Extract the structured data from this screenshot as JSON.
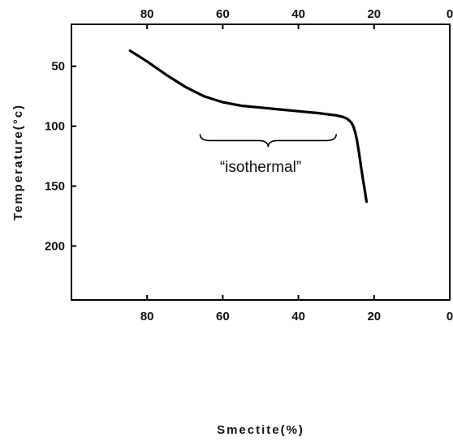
{
  "chart_data": {
    "type": "line",
    "title": "",
    "xlabel": "Smectite(%)",
    "ylabel": "Temperature(°c)",
    "xlim": [
      100,
      0
    ],
    "ylim": [
      15,
      245
    ],
    "x_ticks": [
      80,
      60,
      40,
      20,
      0
    ],
    "x_tick_labels": [
      "80",
      "60",
      "40",
      "20",
      "0"
    ],
    "y_ticks": [
      50,
      100,
      150,
      200
    ],
    "y_tick_labels": [
      "50",
      "100",
      "150",
      "200"
    ],
    "y_axis_inverted": true,
    "x_axis_mirrored_on_top": true,
    "grid": false,
    "series": [
      {
        "x": [
          84.5,
          80,
          75,
          70,
          65,
          60,
          55,
          50,
          45,
          40,
          35,
          30,
          28,
          27,
          26,
          25.5,
          25,
          24.5,
          24,
          23.5,
          23,
          22.5,
          22
        ],
        "y": [
          37,
          46,
          57,
          67,
          75,
          80,
          83,
          84.5,
          86,
          87.5,
          89,
          91,
          92.5,
          94,
          97,
          100,
          105,
          112,
          122,
          133,
          143,
          153,
          163
        ]
      }
    ],
    "annotations": [
      {
        "text": "“isothermal”",
        "x": 50,
        "y": 138
      },
      {
        "shape": "brace",
        "x_from": 66,
        "x_to": 30,
        "y": 112
      }
    ],
    "line_color": "#000000"
  }
}
